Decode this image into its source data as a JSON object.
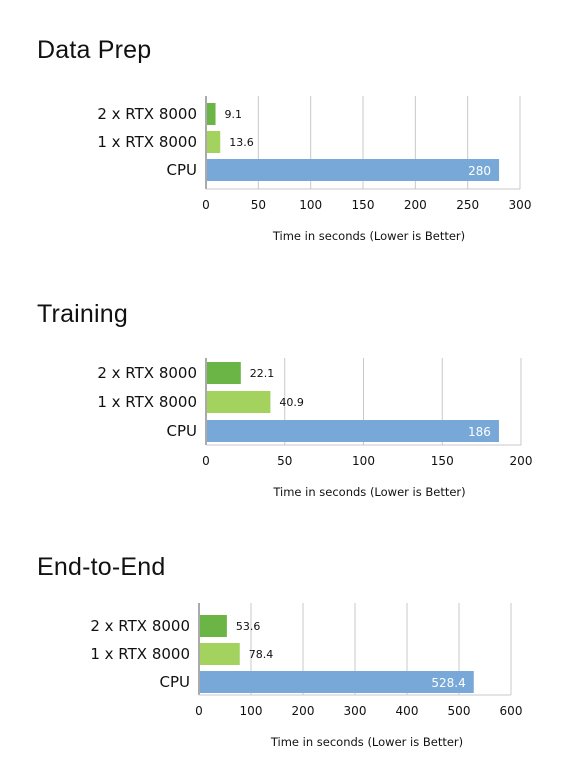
{
  "chart_data": [
    {
      "type": "bar",
      "orientation": "horizontal",
      "title": "Data Prep",
      "categories": [
        "2 x RTX 8000",
        "1 x RTX 8000",
        "CPU"
      ],
      "values": [
        9.1,
        13.6,
        280
      ],
      "value_labels": [
        "9.1",
        "13.6",
        "280"
      ],
      "colors": [
        "#6ab545",
        "#a3d35e",
        "#77a8d8"
      ],
      "xlabel": "Time in seconds (Lower is Better)",
      "xlim": [
        0,
        300
      ],
      "xticks": [
        0,
        50,
        100,
        150,
        200,
        250,
        300
      ],
      "grid": true
    },
    {
      "type": "bar",
      "orientation": "horizontal",
      "title": "Training",
      "categories": [
        "2 x RTX 8000",
        "1 x RTX 8000",
        "CPU"
      ],
      "values": [
        22.1,
        40.9,
        186
      ],
      "value_labels": [
        "22.1",
        "40.9",
        "186"
      ],
      "colors": [
        "#6ab545",
        "#a3d35e",
        "#77a8d8"
      ],
      "xlabel": "Time in seconds (Lower is Better)",
      "xlim": [
        0,
        200
      ],
      "xticks": [
        0,
        50,
        100,
        150,
        200
      ],
      "grid": true
    },
    {
      "type": "bar",
      "orientation": "horizontal",
      "title": "End-to-End",
      "categories": [
        "2 x RTX 8000",
        "1 x RTX 8000",
        "CPU"
      ],
      "values": [
        53.6,
        78.4,
        528.4
      ],
      "value_labels": [
        "53.6",
        "78.4",
        "528.4"
      ],
      "colors": [
        "#6ab545",
        "#a3d35e",
        "#77a8d8"
      ],
      "xlabel": "Time in seconds (Lower is Better)",
      "xlim": [
        0,
        600
      ],
      "xticks": [
        0,
        100,
        200,
        300,
        400,
        500,
        600
      ],
      "grid": true
    }
  ]
}
